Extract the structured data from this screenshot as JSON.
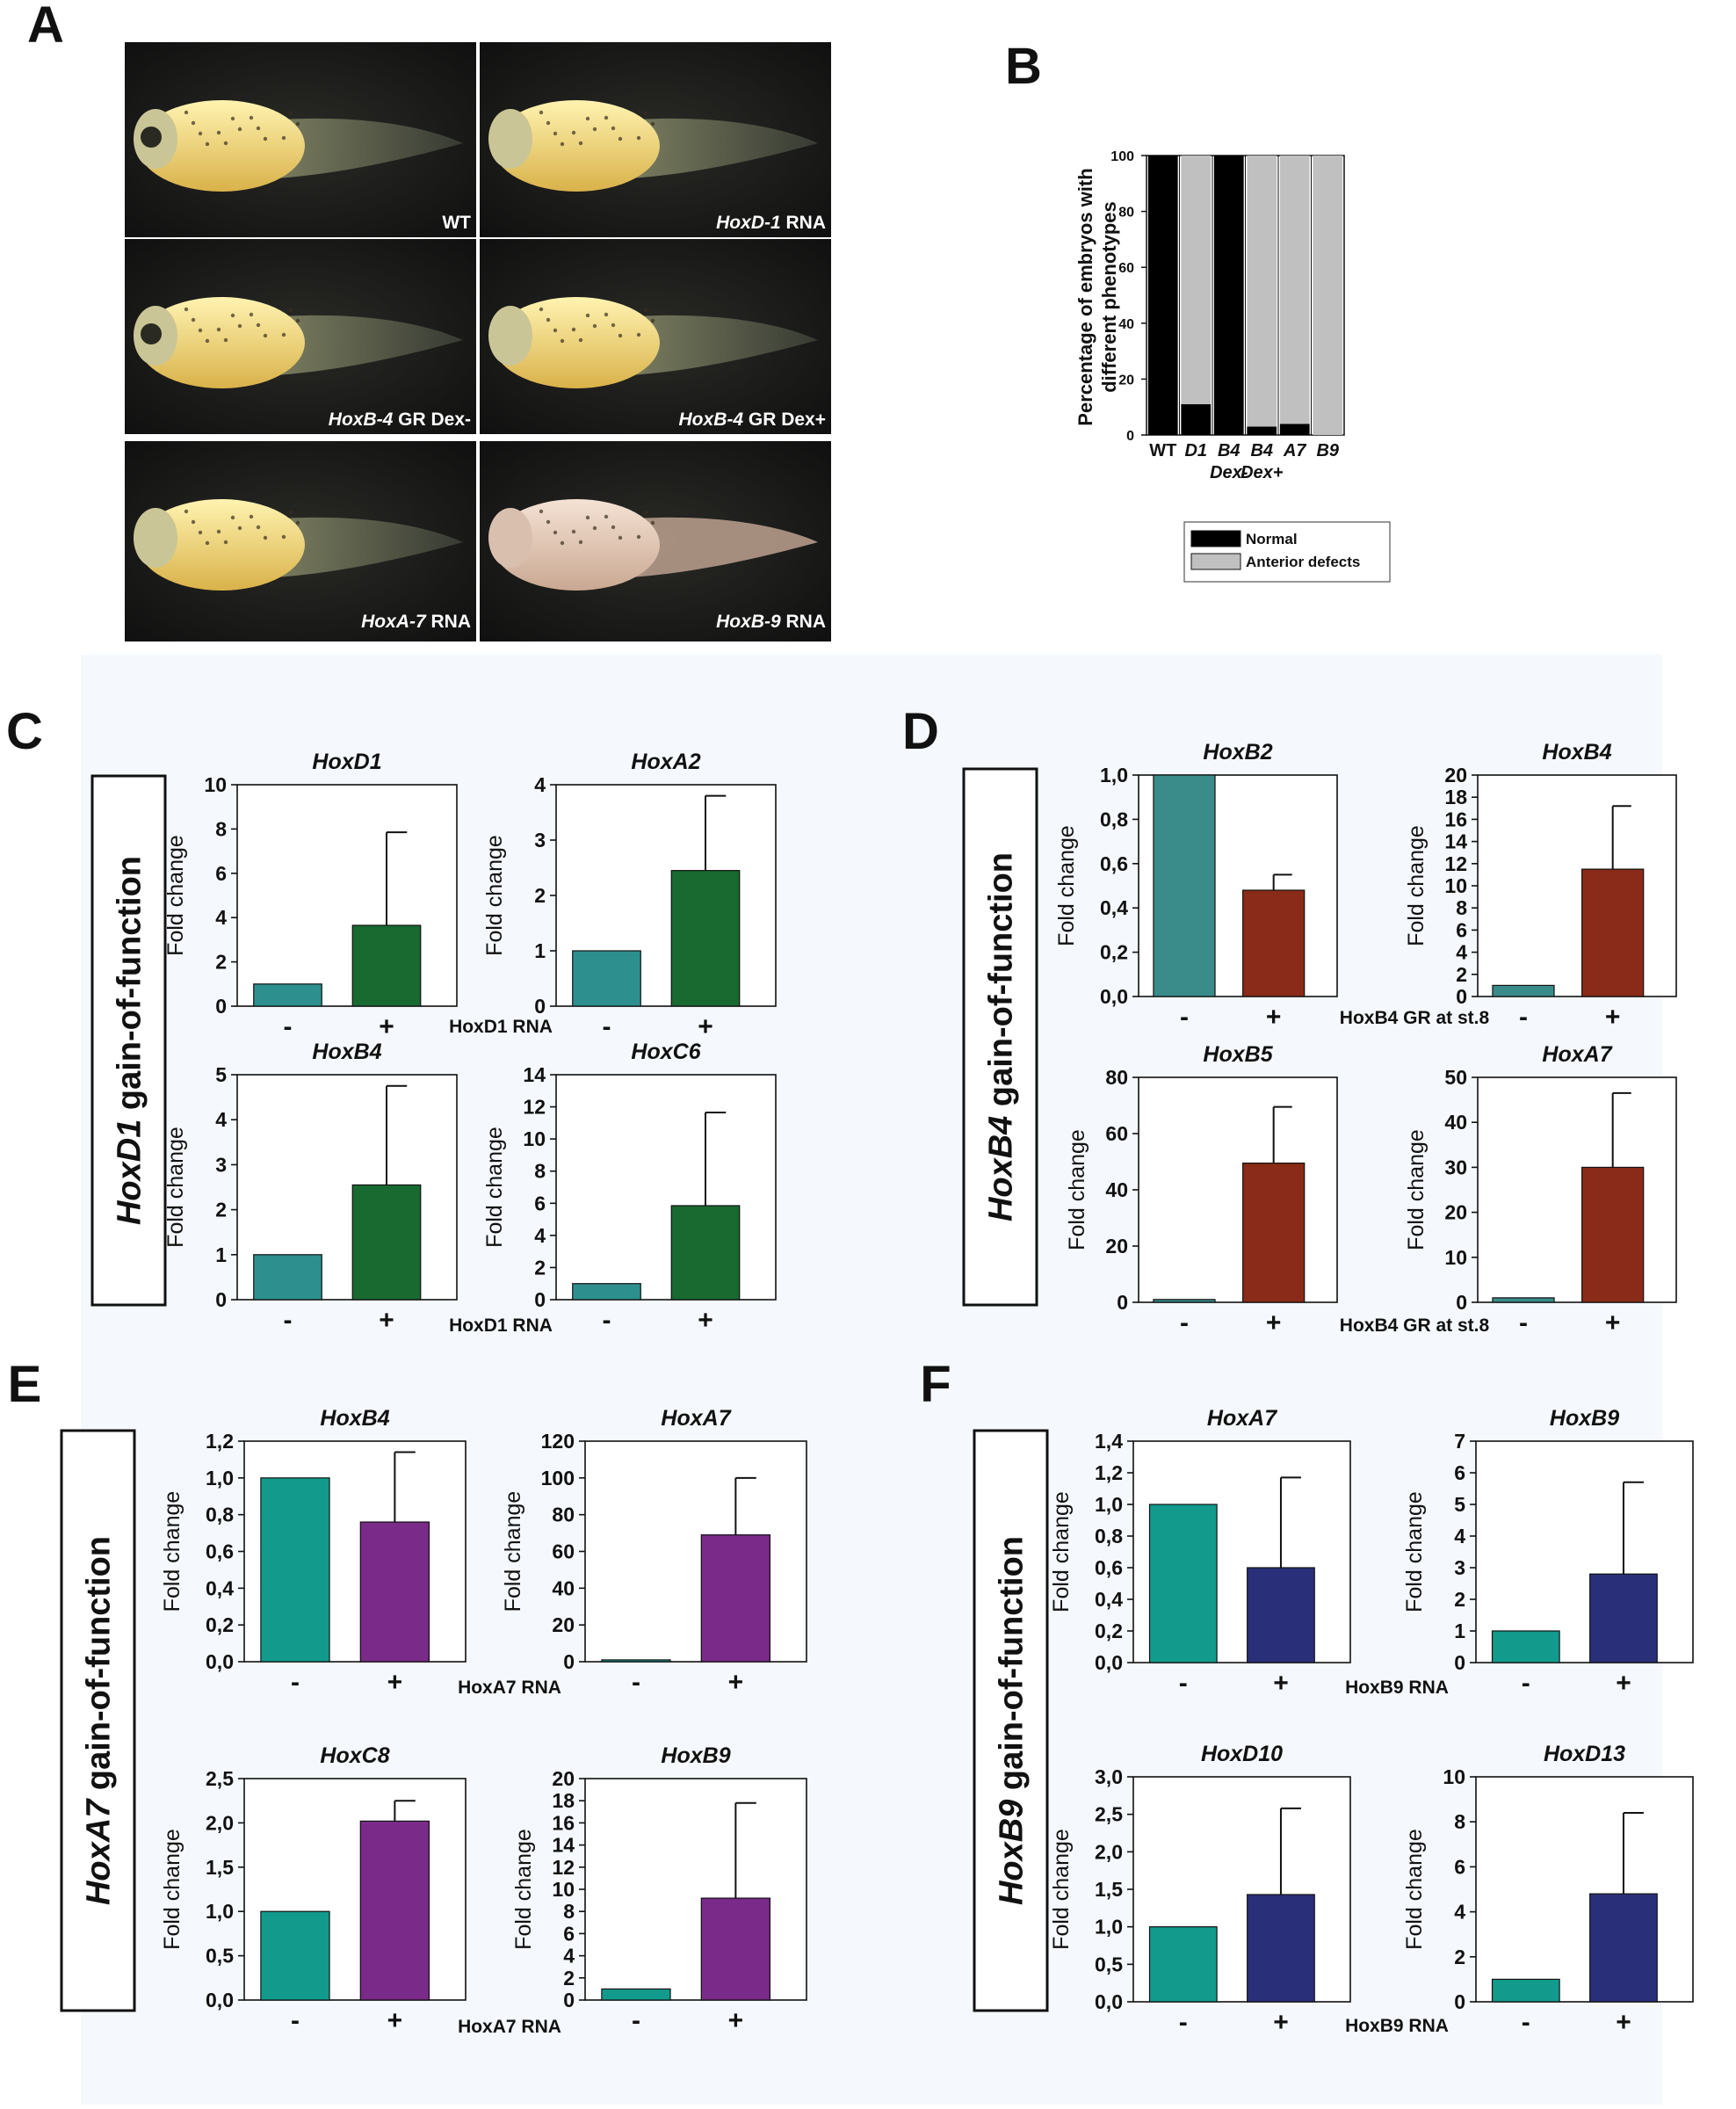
{
  "panel_letters": [
    "A",
    "B",
    "C",
    "D",
    "E",
    "F"
  ],
  "panel_a": {
    "labels": [
      {
        "gene": "",
        "suffix": "WT"
      },
      {
        "gene": "HoxD-1",
        "suffix": " RNA"
      },
      {
        "gene": "HoxB-4",
        "suffix": " GR Dex-"
      },
      {
        "gene": "HoxB-4",
        "suffix": " GR Dex+"
      },
      {
        "gene": "HoxA-7",
        "suffix": " RNA"
      },
      {
        "gene": "HoxB-9",
        "suffix": " RNA"
      }
    ]
  },
  "groups": [
    {
      "gene": "HoxD1",
      "rest": " gain-of-function",
      "treatment": "HoxD1 RNA"
    },
    {
      "gene": "HoxB4",
      "rest": " gain-of-function",
      "treatment": "HoxB4 GR at st.8"
    },
    {
      "gene": "HoxA7",
      "rest": " gain-of-function",
      "treatment": "HoxA7 RNA"
    },
    {
      "gene": "HoxB9",
      "rest": " gain-of-function",
      "treatment": "HoxB9 RNA"
    }
  ],
  "colors": {
    "normal": "#000000",
    "defect": "#c0c0c0",
    "control_C": "#2e8f8f",
    "treat_C": "#186a30",
    "control_D": "#3a8c8a",
    "treat_D": "#8a2a18",
    "control_E": "#129b8c",
    "treat_E": "#7a2a88",
    "control_F": "#129b8c",
    "treat_F": "#2a2f7a"
  },
  "chart_data": [
    {
      "id": "B",
      "type": "bar",
      "stacked": true,
      "categories": [
        "WT",
        "D1",
        "B4\nDex-",
        "B4\nDex+",
        "A7",
        "B9"
      ],
      "ylabel": "Percentage of embryos with\ndifferent phenotypes",
      "ylim": [
        0,
        100
      ],
      "yticks": [
        "0",
        "20",
        "40",
        "60",
        "80",
        "100"
      ],
      "series": [
        {
          "name": "Normal",
          "values": [
            100,
            11,
            100,
            3,
            4,
            0
          ]
        },
        {
          "name": "Anterior defects",
          "values": [
            0,
            89,
            0,
            97,
            96,
            100
          ]
        }
      ],
      "legend": "bottom"
    },
    {
      "id": "C1",
      "type": "bar",
      "title": "HoxD1",
      "ylabel": "Fold change",
      "ylim": [
        0,
        10
      ],
      "yticks": [
        "0",
        "2",
        "4",
        "6",
        "8",
        "10"
      ],
      "categories": [
        "-",
        "+"
      ],
      "values": [
        1.0,
        3.65
      ],
      "errors": [
        0,
        4.2
      ]
    },
    {
      "id": "C2",
      "type": "bar",
      "title": "HoxA2",
      "ylabel": "Fold change",
      "ylim": [
        0,
        4
      ],
      "yticks": [
        "0",
        "1",
        "2",
        "3",
        "4"
      ],
      "categories": [
        "-",
        "+"
      ],
      "values": [
        1.0,
        2.45
      ],
      "errors": [
        0,
        1.35
      ]
    },
    {
      "id": "C3",
      "type": "bar",
      "title": "HoxB4",
      "ylabel": "Fold change",
      "ylim": [
        0,
        5
      ],
      "yticks": [
        "0",
        "1",
        "2",
        "3",
        "4",
        "5"
      ],
      "categories": [
        "-",
        "+"
      ],
      "values": [
        1.0,
        2.55
      ],
      "errors": [
        0,
        2.2
      ]
    },
    {
      "id": "C4",
      "type": "bar",
      "title": "HoxC6",
      "ylabel": "Fold change",
      "ylim": [
        0,
        14
      ],
      "yticks": [
        "0",
        "2",
        "4",
        "6",
        "8",
        "10",
        "12",
        "14"
      ],
      "categories": [
        "-",
        "+"
      ],
      "values": [
        1.0,
        5.85
      ],
      "errors": [
        0,
        5.8
      ]
    },
    {
      "id": "D1",
      "type": "bar",
      "title": "HoxB2",
      "ylabel": "Fold change",
      "ylim": [
        0,
        1
      ],
      "yticks": [
        "0,0",
        "0,2",
        "0,4",
        "0,6",
        "0,8",
        "1,0"
      ],
      "categories": [
        "-",
        "+"
      ],
      "values": [
        1.0,
        0.48
      ],
      "errors": [
        0,
        0.07
      ]
    },
    {
      "id": "D2",
      "type": "bar",
      "title": "HoxB4",
      "ylabel": "Fold change",
      "ylim": [
        0,
        20
      ],
      "yticks": [
        "0",
        "2",
        "4",
        "6",
        "8",
        "10",
        "12",
        "14",
        "16",
        "18",
        "20"
      ],
      "categories": [
        "-",
        "+"
      ],
      "values": [
        1.0,
        11.5
      ],
      "errors": [
        0,
        5.7
      ]
    },
    {
      "id": "D3",
      "type": "bar",
      "title": "HoxB5",
      "ylabel": "Fold change",
      "ylim": [
        0,
        80
      ],
      "yticks": [
        "0",
        "20",
        "40",
        "60",
        "80"
      ],
      "categories": [
        "-",
        "+"
      ],
      "values": [
        1.0,
        49.5
      ],
      "errors": [
        0,
        20
      ]
    },
    {
      "id": "D4",
      "type": "bar",
      "title": "HoxA7",
      "ylabel": "Fold change",
      "ylim": [
        0,
        50
      ],
      "yticks": [
        "0",
        "10",
        "20",
        "30",
        "40",
        "50"
      ],
      "categories": [
        "-",
        "+"
      ],
      "values": [
        1.0,
        30
      ],
      "errors": [
        0,
        16.5
      ]
    },
    {
      "id": "E1",
      "type": "bar",
      "title": "HoxB4",
      "ylabel": "Fold change",
      "ylim": [
        0,
        1.2
      ],
      "yticks": [
        "0,0",
        "0,2",
        "0,4",
        "0,6",
        "0,8",
        "1,0",
        "1,2"
      ],
      "categories": [
        "-",
        "+"
      ],
      "values": [
        1.0,
        0.76
      ],
      "errors": [
        0,
        0.38
      ]
    },
    {
      "id": "E2",
      "type": "bar",
      "title": "HoxA7",
      "ylabel": "Fold change",
      "ylim": [
        0,
        120
      ],
      "yticks": [
        "0",
        "20",
        "40",
        "60",
        "80",
        "100",
        "120"
      ],
      "categories": [
        "-",
        "+"
      ],
      "values": [
        1.0,
        69
      ],
      "errors": [
        0,
        31
      ]
    },
    {
      "id": "E3",
      "type": "bar",
      "title": "HoxC8",
      "ylabel": "Fold change",
      "ylim": [
        0,
        2.5
      ],
      "yticks": [
        "0,0",
        "0,5",
        "1,0",
        "1,5",
        "2,0",
        "2,5"
      ],
      "categories": [
        "-",
        "+"
      ],
      "values": [
        1.0,
        2.02
      ],
      "errors": [
        0,
        0.23
      ]
    },
    {
      "id": "E4",
      "type": "bar",
      "title": "HoxB9",
      "ylabel": "Fold change",
      "ylim": [
        0,
        20
      ],
      "yticks": [
        "0",
        "2",
        "4",
        "6",
        "8",
        "10",
        "12",
        "14",
        "16",
        "18",
        "20"
      ],
      "categories": [
        "-",
        "+"
      ],
      "values": [
        1.0,
        9.2
      ],
      "errors": [
        0,
        8.6
      ]
    },
    {
      "id": "F1",
      "type": "bar",
      "title": "HoxA7",
      "ylabel": "Fold change",
      "ylim": [
        0,
        1.4
      ],
      "yticks": [
        "0,0",
        "0,2",
        "0,4",
        "0,6",
        "0,8",
        "1,0",
        "1,2",
        "1,4"
      ],
      "categories": [
        "-",
        "+"
      ],
      "values": [
        1.0,
        0.6
      ],
      "errors": [
        0,
        0.57
      ]
    },
    {
      "id": "F2",
      "type": "bar",
      "title": "HoxB9",
      "ylabel": "Fold change",
      "ylim": [
        0,
        7
      ],
      "yticks": [
        "0",
        "1",
        "2",
        "3",
        "4",
        "5",
        "6",
        "7"
      ],
      "categories": [
        "-",
        "+"
      ],
      "values": [
        1.0,
        2.8
      ],
      "errors": [
        0,
        2.9
      ]
    },
    {
      "id": "F3",
      "type": "bar",
      "title": "HoxD10",
      "ylabel": "Fold change",
      "ylim": [
        0,
        3
      ],
      "yticks": [
        "0,0",
        "0,5",
        "1,0",
        "1,5",
        "2,0",
        "2,5",
        "3,0"
      ],
      "categories": [
        "-",
        "+"
      ],
      "values": [
        1.0,
        1.43
      ],
      "errors": [
        0,
        1.15
      ]
    },
    {
      "id": "F4",
      "type": "bar",
      "title": "HoxD13",
      "ylabel": "Fold change",
      "ylim": [
        0,
        10
      ],
      "yticks": [
        "0",
        "2",
        "4",
        "6",
        "8",
        "10"
      ],
      "categories": [
        "-",
        "+"
      ],
      "values": [
        1.0,
        4.8
      ],
      "errors": [
        0,
        3.6
      ]
    }
  ]
}
